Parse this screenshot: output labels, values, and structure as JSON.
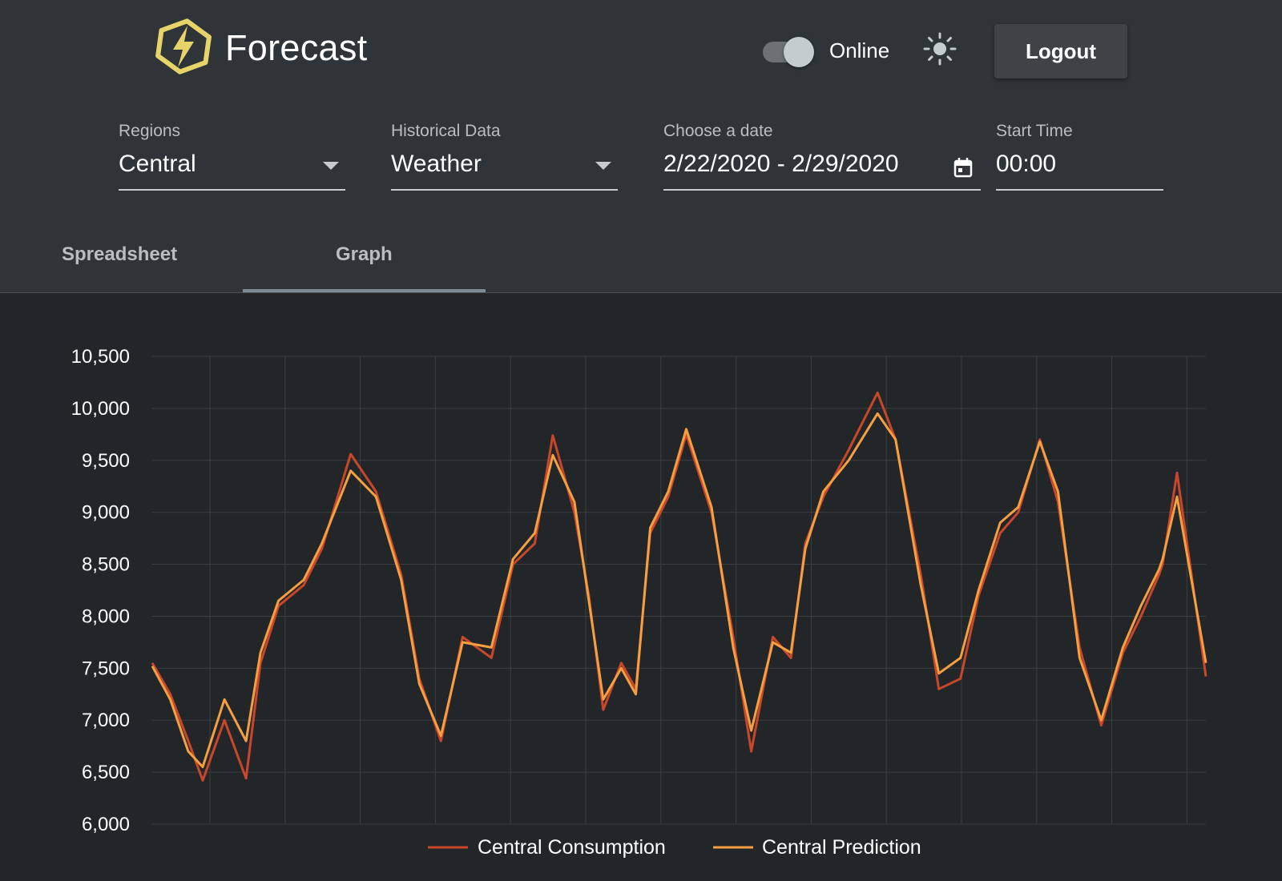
{
  "app": {
    "title": "Forecast"
  },
  "header": {
    "status_label": "Online",
    "status_on": true,
    "theme_icon": "sun-icon",
    "logout_label": "Logout"
  },
  "filters": {
    "regions": {
      "label": "Regions",
      "value": "Central"
    },
    "historical": {
      "label": "Historical Data",
      "value": "Weather"
    },
    "date": {
      "label": "Choose a date",
      "value": "2/22/2020 - 2/29/2020"
    },
    "start_time": {
      "label": "Start Time",
      "value": "00:00"
    }
  },
  "tabs": [
    {
      "label": "Spreadsheet",
      "active": false
    },
    {
      "label": "Graph",
      "active": true
    }
  ],
  "colors": {
    "accent_logo": "#e6d36a",
    "consumption": "#c8472b",
    "prediction": "#f4a042"
  },
  "chart_data": {
    "type": "line",
    "title": "",
    "xlabel": "",
    "ylabel": "",
    "ylim": [
      6000,
      10500
    ],
    "yticks": [
      6000,
      6500,
      7000,
      7500,
      8000,
      8500,
      9000,
      9500,
      10000,
      10500
    ],
    "ytick_labels": [
      "6,000",
      "6,500",
      "7,000",
      "7,500",
      "8,000",
      "8,500",
      "9,000",
      "9,500",
      "10,000",
      "10,500"
    ],
    "grid": true,
    "legend": "bottom-center",
    "x": [
      0,
      0.25,
      0.5,
      0.7,
      1,
      1.3,
      1.5,
      1.75,
      2.1,
      2.35,
      2.75,
      3.1,
      3.45,
      3.7,
      4,
      4.3,
      4.7,
      5,
      5.3,
      5.55,
      5.85,
      6.05,
      6.25,
      6.5,
      6.7,
      6.9,
      7.15,
      7.4,
      7.75,
      8.05,
      8.3,
      8.6,
      8.85,
      9.05,
      9.3,
      9.65,
      10.05,
      10.3,
      10.65,
      10.9,
      11.2,
      11.45,
      11.75,
      12,
      12.3,
      12.55,
      12.85,
      13.15,
      13.45,
      13.7,
      13.95,
      14,
      14.2,
      14.6
    ],
    "series": [
      {
        "name": "Central Consumption",
        "values": [
          7550,
          7250,
          6800,
          6420,
          7000,
          6440,
          7550,
          8100,
          8300,
          8650,
          9560,
          9200,
          8400,
          7400,
          6800,
          7800,
          7600,
          8500,
          8700,
          9740,
          9000,
          8200,
          7100,
          7550,
          7300,
          8800,
          9150,
          9750,
          9000,
          7800,
          6700,
          7800,
          7600,
          8700,
          9150,
          9600,
          10150,
          9700,
          8400,
          7300,
          7400,
          8200,
          8800,
          9000,
          9700,
          9100,
          7700,
          6950,
          7650,
          8000,
          8400,
          8500,
          9380,
          7420
        ]
      },
      {
        "name": "Central Prediction",
        "values": [
          7520,
          7200,
          6700,
          6550,
          7200,
          6800,
          7650,
          8150,
          8350,
          8700,
          9400,
          9150,
          8350,
          7350,
          6850,
          7750,
          7700,
          8550,
          8800,
          9550,
          9100,
          8150,
          7200,
          7500,
          7250,
          8850,
          9200,
          9800,
          9050,
          7700,
          6900,
          7750,
          7650,
          8650,
          9200,
          9500,
          9950,
          9700,
          8300,
          7450,
          7600,
          8250,
          8900,
          9050,
          9680,
          9200,
          7600,
          7000,
          7700,
          8100,
          8450,
          8550,
          9150,
          7550
        ]
      }
    ]
  }
}
